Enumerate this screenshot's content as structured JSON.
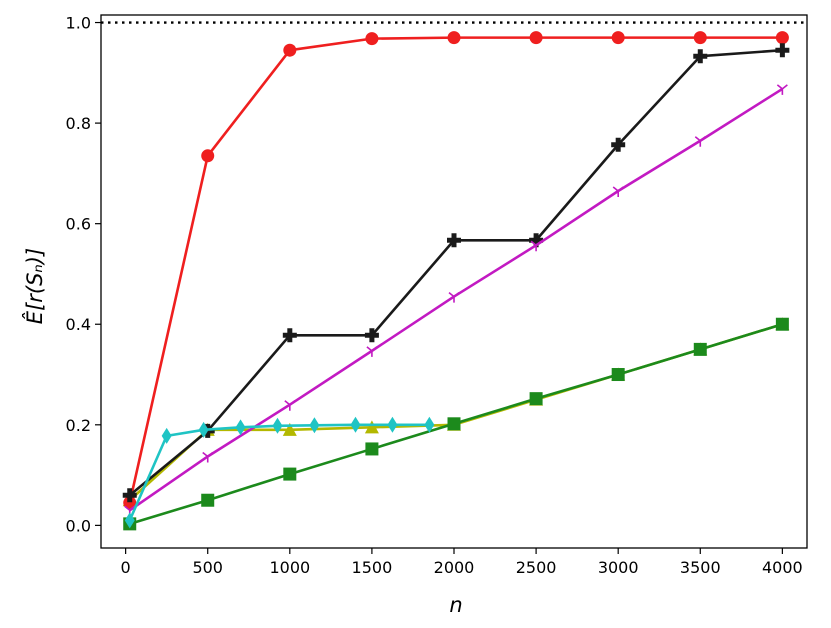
{
  "chart_data": {
    "type": "line",
    "xlabel": "n",
    "ylabel": "Ê[r(Sₙ)]",
    "xlim": [
      -150,
      4150
    ],
    "ylim": [
      -0.045,
      1.015
    ],
    "xticks": [
      0,
      500,
      1000,
      1500,
      2000,
      2500,
      3000,
      3500,
      4000
    ],
    "yticks": [
      0.0,
      0.2,
      0.4,
      0.6,
      0.8,
      1.0
    ],
    "xtick_labels": [
      "0",
      "500",
      "1000",
      "1500",
      "2000",
      "2500",
      "3000",
      "3500",
      "4000"
    ],
    "ytick_labels": [
      "0.0",
      "0.2",
      "0.4",
      "0.6",
      "0.8",
      "1.0"
    ],
    "grid": false,
    "reference_line": {
      "y": 1.0,
      "style": "dotted",
      "color": "#000000"
    },
    "series": [
      {
        "color": "#b3b800",
        "marker": "triangle",
        "x": [
          25,
          500,
          1000,
          1500,
          2000,
          2500,
          3000,
          3500,
          4000
        ],
        "y": [
          0.05,
          0.19,
          0.19,
          0.195,
          0.2,
          0.25,
          0.3,
          0.35,
          0.4
        ]
      },
      {
        "color": "#ef1f1f",
        "marker": "circle",
        "x": [
          25,
          500,
          1000,
          1500,
          2000,
          2500,
          3000,
          3500,
          4000
        ],
        "y": [
          0.045,
          0.735,
          0.945,
          0.968,
          0.97,
          0.97,
          0.97,
          0.97,
          0.97
        ]
      },
      {
        "color": "#1a1a1a",
        "marker": "plus",
        "x": [
          25,
          500,
          1000,
          1500,
          2000,
          2500,
          3000,
          3500,
          4000
        ],
        "y": [
          0.06,
          0.188,
          0.378,
          0.378,
          0.567,
          0.567,
          0.757,
          0.933,
          0.945
        ]
      },
      {
        "color": "#c21ac2",
        "marker": "tri_down",
        "x": [
          25,
          500,
          1000,
          1500,
          2000,
          2500,
          3000,
          3500,
          4000
        ],
        "y": [
          0.03,
          0.137,
          0.24,
          0.347,
          0.455,
          0.557,
          0.665,
          0.765,
          0.868
        ]
      },
      {
        "color": "#1c8a1c",
        "marker": "square",
        "x": [
          25,
          500,
          1000,
          1500,
          2000,
          2500,
          3000,
          3500,
          4000
        ],
        "y": [
          0.003,
          0.05,
          0.102,
          0.152,
          0.202,
          0.252,
          0.3,
          0.35,
          0.4
        ]
      },
      {
        "color": "#1fc4c4",
        "marker": "diamond",
        "x": [
          25,
          250,
          475,
          700,
          925,
          1150,
          1400,
          1625,
          1850
        ],
        "y": [
          0.01,
          0.178,
          0.19,
          0.195,
          0.198,
          0.199,
          0.2,
          0.2,
          0.2
        ]
      }
    ]
  }
}
